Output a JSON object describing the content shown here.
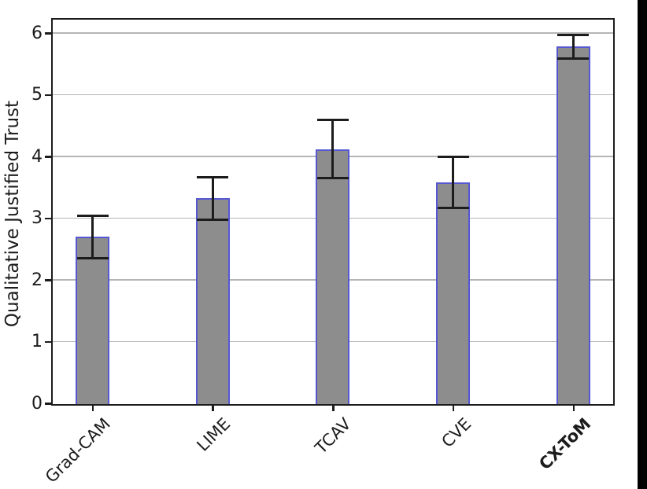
{
  "figure": {
    "background": "#ffffff",
    "right_strip_color": "#000000"
  },
  "chart_data": {
    "type": "bar",
    "title": "",
    "xlabel": "",
    "ylabel": "Qualitative Justified Trust",
    "categories": [
      "Grad-CAM",
      "LIME",
      "TCAV",
      "CVE",
      "CX-ToM"
    ],
    "values": [
      2.7,
      3.32,
      4.12,
      3.58,
      5.78
    ],
    "errors": [
      0.35,
      0.35,
      0.48,
      0.42,
      0.2
    ],
    "bold_categories": [
      "CX-ToM"
    ],
    "yticks": [
      0,
      1,
      2,
      3,
      4,
      5,
      6
    ],
    "ylim": [
      0,
      6.2
    ],
    "grid": true,
    "legend_position": "none",
    "colors": {
      "bar_fill": "#8d8d8d",
      "bar_edge": "#5558d2",
      "error_bar": "#1c1c1c",
      "gridline": "#b5b5b5",
      "spine": "#1c1c1c",
      "tick_label": "#1c1c1c"
    }
  }
}
